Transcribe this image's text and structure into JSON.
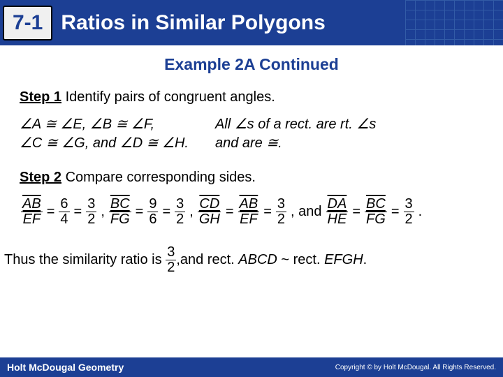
{
  "header": {
    "section_number": "7-1",
    "title": "Ratios in Similar Polygons",
    "colors": {
      "bar_bg": "#1c3f94",
      "title_fg": "#ffffff",
      "badge_bg": "#f0f0f0",
      "badge_fg": "#1c3f94"
    }
  },
  "example_title": "Example 2A Continued",
  "step1": {
    "label": "Step 1",
    "text": "Identify pairs of congruent angles.",
    "angles_line1": "∠A ≅ ∠E, ∠B ≅ ∠F,",
    "angles_line2": "∠C ≅ ∠G, and ∠D ≅ ∠H.",
    "reason_line1": "All ∠s of a rect. are rt. ∠s",
    "reason_line2": "and are ≅."
  },
  "step2": {
    "label": "Step 2",
    "text": "Compare corresponding sides.",
    "ratios": [
      {
        "top_seg": "AB",
        "bot_seg": "EF",
        "v1n": "6",
        "v1d": "4",
        "v2n": "3",
        "v2d": "2"
      },
      {
        "top_seg": "BC",
        "bot_seg": "FG",
        "v1n": "9",
        "v1d": "6",
        "v2n": "3",
        "v2d": "2"
      },
      {
        "top_seg": "CD",
        "bot_seg": "GH",
        "eq_top": "AB",
        "eq_bot": "EF",
        "v2n": "3",
        "v2d": "2"
      }
    ],
    "and_ratio": {
      "a_top": "DA",
      "a_bot": "HE",
      "b_top": "BC",
      "b_bot": "FG",
      "vn": "3",
      "vd": "2"
    }
  },
  "conclusion": {
    "prefix": "Thus the similarity ratio is",
    "ratio_n": "3",
    "ratio_d": "2",
    "suffix": "and rect. ABCD ~ rect. EFGH."
  },
  "footer": {
    "left": "Holt McDougal Geometry",
    "right": "Copyright © by Holt McDougal. All Rights Reserved."
  }
}
